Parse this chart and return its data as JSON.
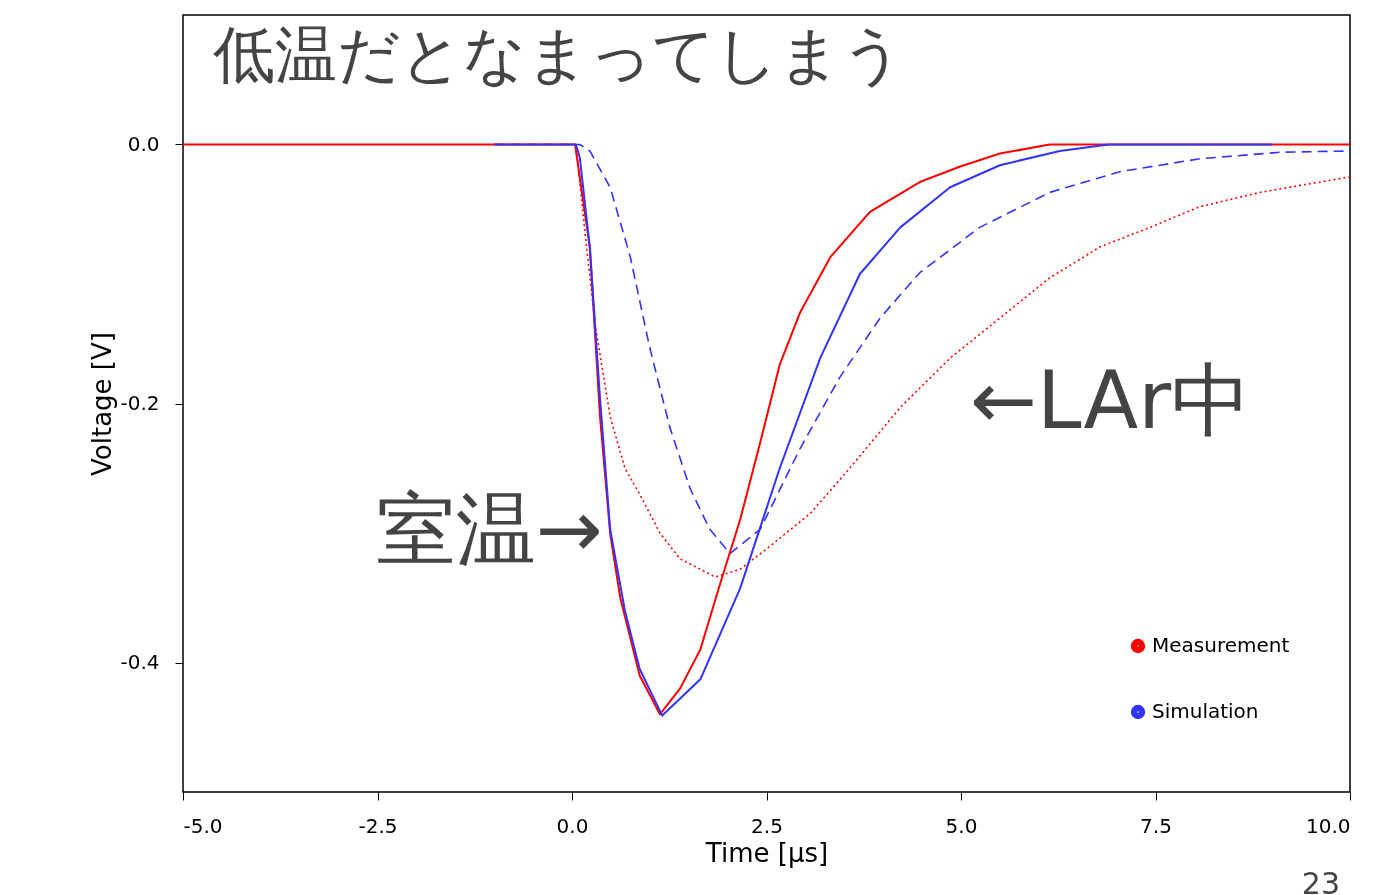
{
  "chart_data": {
    "type": "line",
    "title": "低温だとなまってしまう",
    "xlabel": "Time [μs]",
    "ylabel": "Voltage [V]",
    "xlim": [
      -5,
      10
    ],
    "ylim": [
      -0.5,
      0.1
    ],
    "xticks": [
      {
        "value": -5,
        "label": "-5.0"
      },
      {
        "value": -2.5,
        "label": "-2.5"
      },
      {
        "value": 0,
        "label": "0.0"
      },
      {
        "value": 2.5,
        "label": "2.5"
      },
      {
        "value": 5,
        "label": "5.0"
      },
      {
        "value": 7.5,
        "label": "7.5"
      },
      {
        "value": 10,
        "label": "10.0"
      }
    ],
    "yticks": [
      {
        "value": 0,
        "label": "0.0"
      },
      {
        "value": -0.2,
        "label": "-0.2"
      },
      {
        "value": -0.4,
        "label": "-0.4"
      }
    ],
    "grid": false,
    "legend": "bottom right",
    "marker": "none",
    "series": [
      {
        "color": "#ff0000",
        "line_style": "dotted",
        "x": [
          0.05,
          0.17,
          0.3,
          0.49,
          0.68,
          0.87,
          1.13,
          1.39,
          1.65,
          1.84,
          2.16,
          2.55,
          3.06,
          3.57,
          4.22,
          4.86,
          5.5,
          6.14,
          6.79,
          7.43,
          8.07,
          8.84,
          10
        ],
        "values": [
          0,
          -0.07,
          -0.14,
          -0.21,
          -0.25,
          -0.27,
          -0.3,
          -0.32,
          -0.328,
          -0.334,
          -0.328,
          -0.31,
          -0.285,
          -0.25,
          -0.203,
          -0.165,
          -0.134,
          -0.103,
          -0.079,
          -0.064,
          -0.048,
          -0.037,
          -0.025
        ]
      },
      {
        "color": "#3333ff",
        "line_style": "dashed",
        "x": [
          -1,
          0.1,
          0.23,
          0.49,
          0.75,
          1.0,
          1.26,
          1.52,
          1.77,
          2.03,
          2.42,
          2.93,
          3.44,
          3.96,
          4.47,
          5.24,
          6.14,
          7.04,
          8.07,
          9.1,
          10
        ],
        "values": [
          0,
          0,
          -0.005,
          -0.033,
          -0.087,
          -0.157,
          -0.219,
          -0.266,
          -0.297,
          -0.316,
          -0.297,
          -0.235,
          -0.18,
          -0.134,
          -0.099,
          -0.064,
          -0.037,
          -0.021,
          -0.011,
          -0.006,
          -0.005
        ]
      },
      {
        "name": "Measurement",
        "color": "#ff0000",
        "line_style": "solid",
        "x": [
          -5,
          -4,
          -3,
          -2,
          -1,
          0,
          0.04,
          0.23,
          0.36,
          0.49,
          0.62,
          0.87,
          1.13,
          1.39,
          1.65,
          1.9,
          2.16,
          2.42,
          2.67,
          2.93,
          3.32,
          3.83,
          4.47,
          4.99,
          5.5,
          6.14,
          7,
          8,
          9,
          10
        ],
        "values": [
          0,
          0,
          0,
          0,
          0,
          0,
          0,
          -0.08,
          -0.21,
          -0.3,
          -0.35,
          -0.41,
          -0.44,
          -0.42,
          -0.39,
          -0.34,
          -0.29,
          -0.23,
          -0.17,
          -0.13,
          -0.087,
          -0.052,
          -0.029,
          -0.017,
          -0.007,
          0,
          0,
          0,
          0,
          0
        ]
      },
      {
        "name": "Simulation",
        "color": "#3333ff",
        "line_style": "solid",
        "x": [
          -1,
          0.05,
          0.1,
          0.23,
          0.36,
          0.49,
          0.68,
          0.87,
          1.16,
          1.65,
          2.16,
          2.67,
          3.19,
          3.7,
          4.22,
          4.86,
          5.5,
          6.27,
          6.9,
          9
        ],
        "values": [
          0,
          0,
          -0.01,
          -0.08,
          -0.196,
          -0.297,
          -0.36,
          -0.405,
          -0.441,
          -0.413,
          -0.343,
          -0.25,
          -0.165,
          -0.1,
          -0.064,
          -0.033,
          -0.016,
          -0.005,
          0,
          0
        ]
      }
    ],
    "annotations": [
      {
        "text": "室温→",
        "x": 0.5,
        "y": -0.3
      },
      "←LAr中",
      "23"
    ]
  }
}
